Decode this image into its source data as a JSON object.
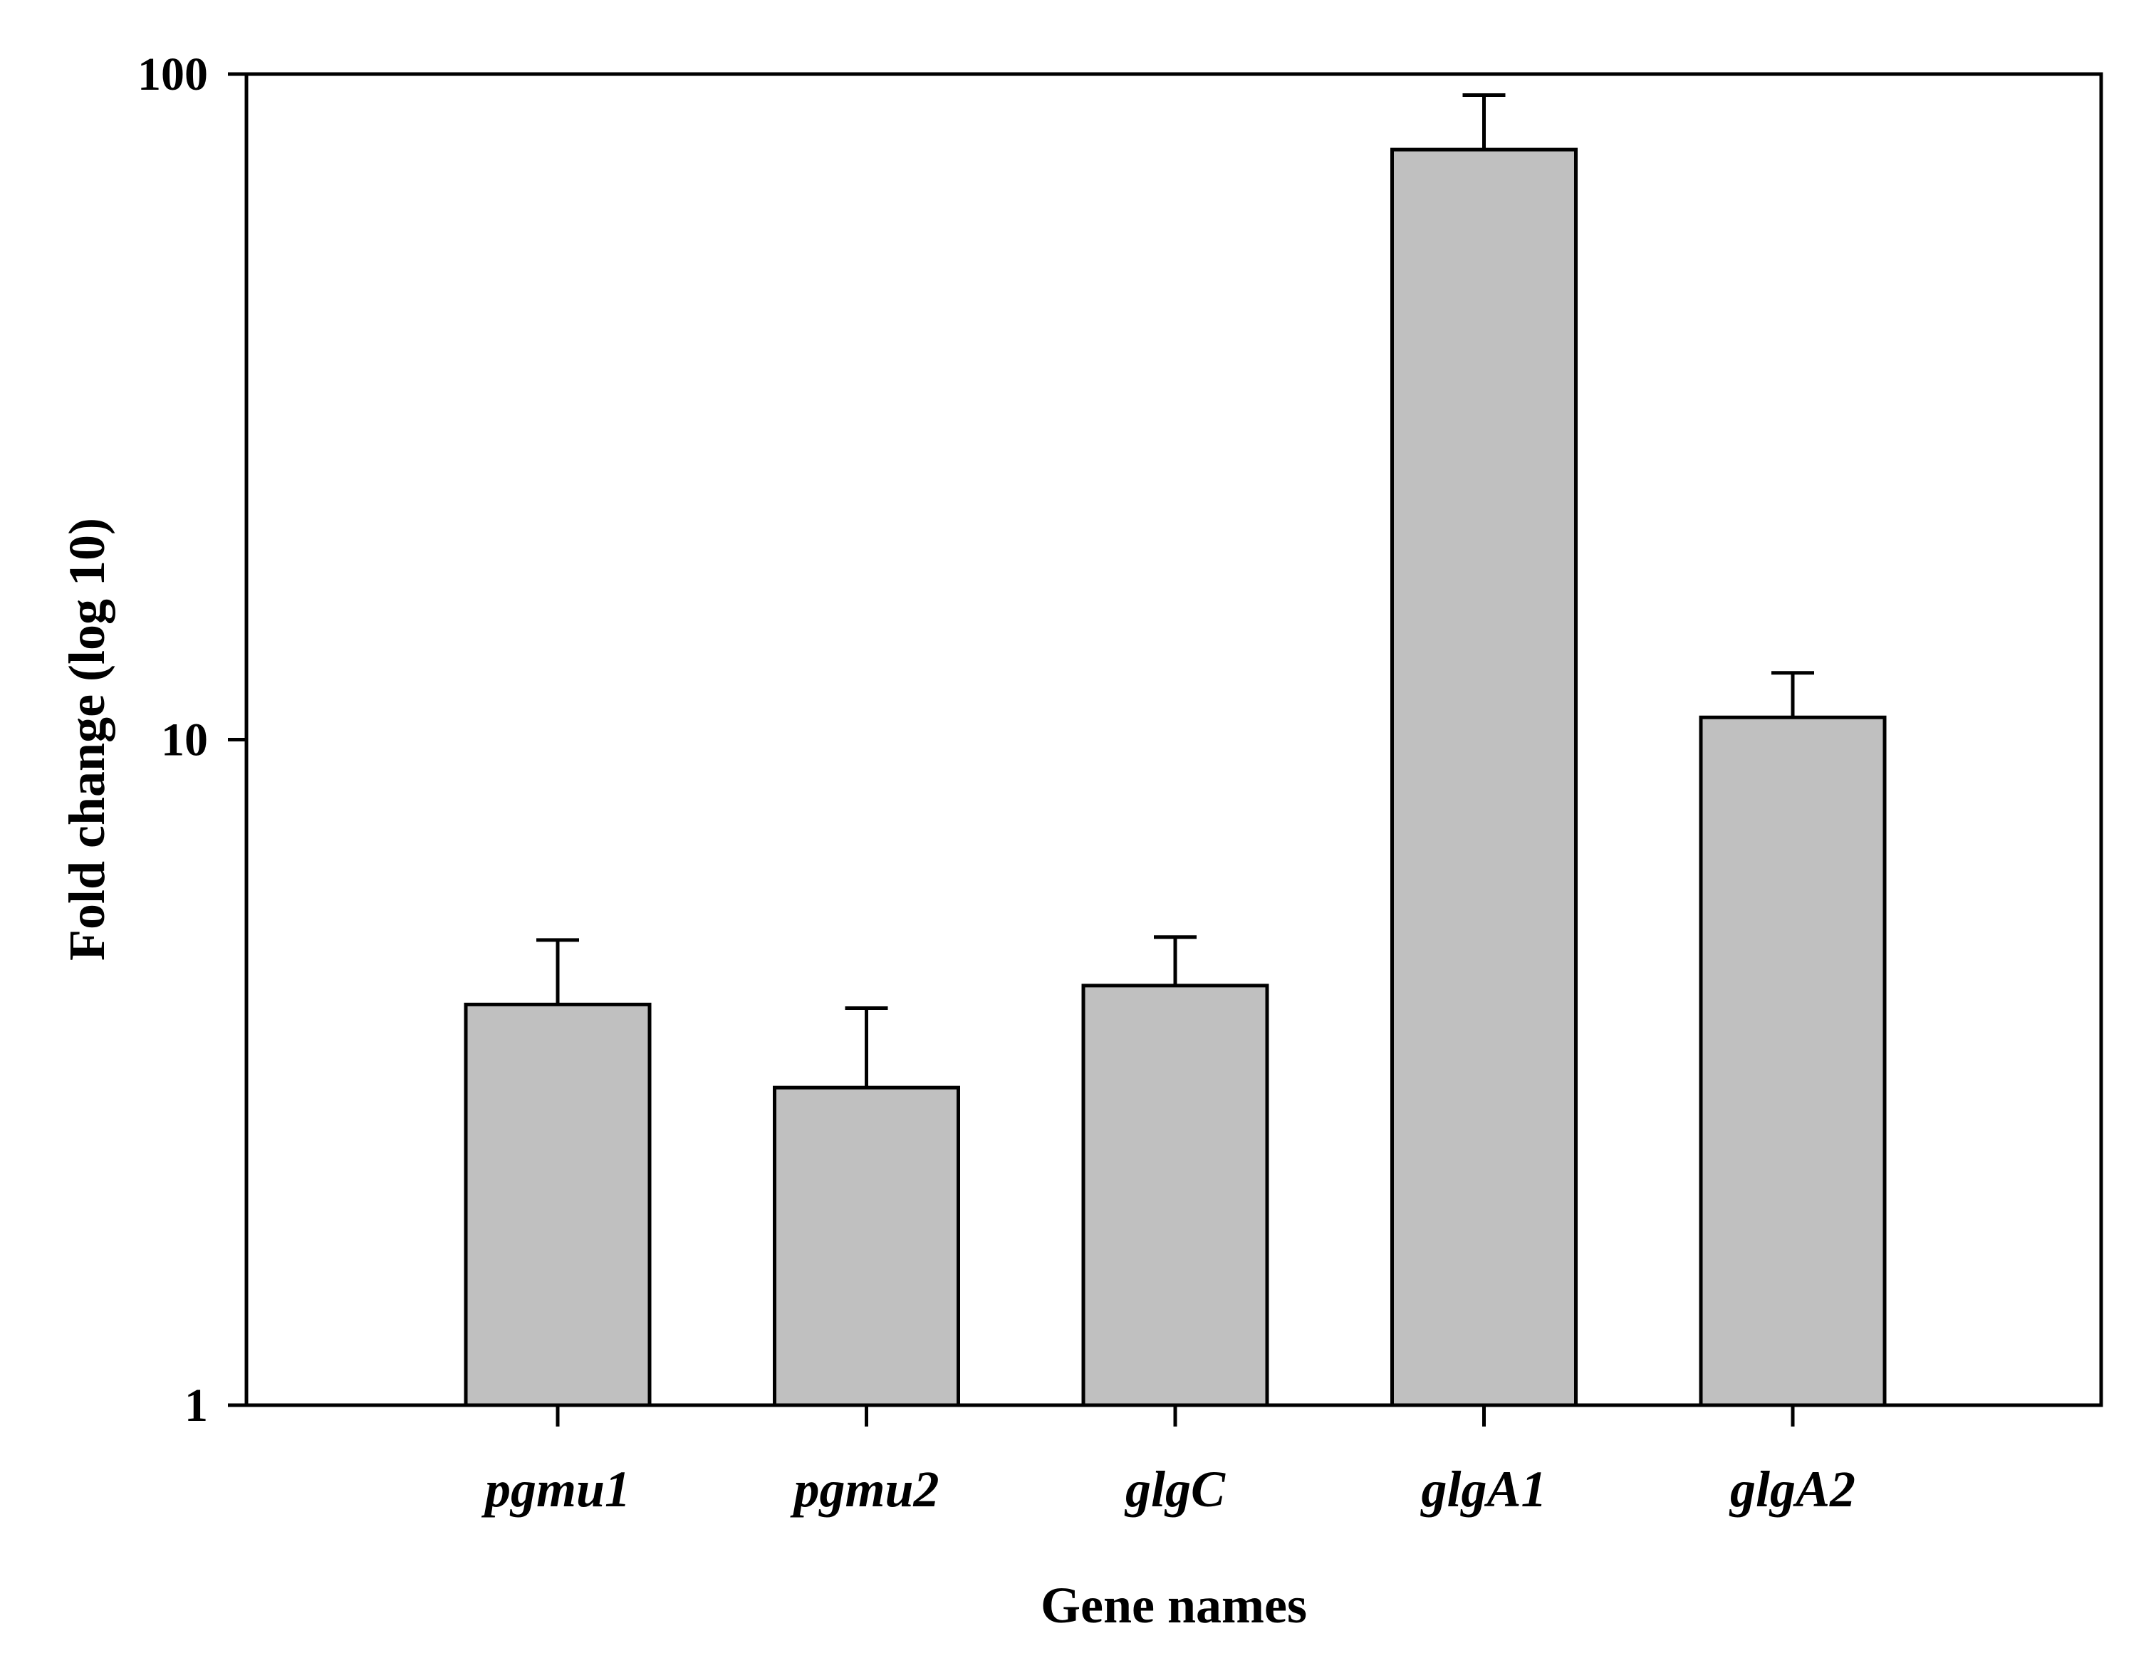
{
  "chart_data": {
    "type": "bar",
    "categories": [
      "pgmu1",
      "pgmu2",
      "glgC",
      "glgA1",
      "glgA2"
    ],
    "series": [
      {
        "values": [
          4.0,
          3.0,
          4.27,
          77.0,
          10.8
        ],
        "error_plus": [
          1.0,
          0.95,
          0.78,
          16.0,
          1.8
        ]
      }
    ],
    "xlabel": "Gene names",
    "ylabel": "Fold change (log 10)",
    "yscale": "log",
    "ylim": [
      1,
      100
    ],
    "yticks": [
      1,
      10,
      100
    ],
    "ytick_labels": [
      "1",
      "10",
      "100"
    ],
    "grid": false,
    "bar_color": "#c0c0c0",
    "edge_color": "#000000",
    "background": "#ffffff"
  }
}
